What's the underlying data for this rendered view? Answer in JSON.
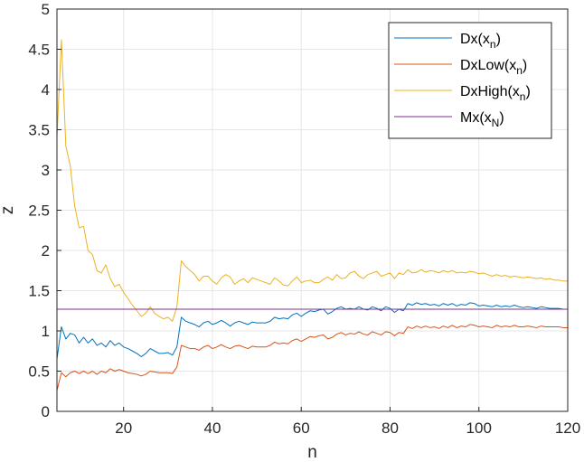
{
  "chart_data": {
    "type": "line",
    "xlabel": "n",
    "ylabel": "z",
    "xlim": [
      5,
      120
    ],
    "ylim": [
      0,
      5
    ],
    "x_ticks": [
      "20",
      "40",
      "60",
      "80",
      "100",
      "120"
    ],
    "y_ticks": [
      "0",
      "0.5",
      "1",
      "1.5",
      "2",
      "2.5",
      "3",
      "3.5",
      "4",
      "4.5",
      "5"
    ],
    "grid": true,
    "legend_position": "top-right",
    "series": [
      {
        "name": "Dx(x_n)",
        "legend_main": "Dx(x",
        "legend_sub": "n",
        "legend_close": ")",
        "color": "#0072bd",
        "x": [
          5,
          6,
          7,
          8,
          9,
          10,
          11,
          12,
          13,
          14,
          15,
          16,
          17,
          18,
          19,
          20,
          21,
          22,
          23,
          24,
          25,
          26,
          27,
          28,
          29,
          30,
          31,
          32,
          33,
          34,
          35,
          36,
          37,
          38,
          39,
          40,
          41,
          42,
          43,
          44,
          45,
          46,
          47,
          48,
          49,
          50,
          51,
          52,
          53,
          54,
          55,
          56,
          57,
          58,
          59,
          60,
          61,
          62,
          63,
          64,
          65,
          66,
          67,
          68,
          69,
          70,
          71,
          72,
          73,
          74,
          75,
          76,
          77,
          78,
          79,
          80,
          81,
          82,
          83,
          84,
          85,
          86,
          87,
          88,
          89,
          90,
          91,
          92,
          93,
          94,
          95,
          96,
          97,
          98,
          99,
          100,
          101,
          102,
          103,
          104,
          105,
          106,
          107,
          108,
          109,
          110,
          111,
          112,
          113,
          114,
          115,
          116,
          117,
          118,
          119,
          120
        ],
        "values": [
          0.65,
          1.05,
          0.9,
          0.97,
          0.95,
          0.85,
          0.92,
          0.85,
          0.9,
          0.82,
          0.85,
          0.8,
          0.88,
          0.82,
          0.85,
          0.8,
          0.78,
          0.75,
          0.72,
          0.68,
          0.72,
          0.78,
          0.75,
          0.72,
          0.72,
          0.73,
          0.7,
          0.8,
          1.17,
          1.12,
          1.1,
          1.08,
          1.05,
          1.1,
          1.12,
          1.08,
          1.1,
          1.13,
          1.1,
          1.06,
          1.1,
          1.12,
          1.1,
          1.08,
          1.11,
          1.1,
          1.1,
          1.1,
          1.12,
          1.17,
          1.15,
          1.16,
          1.15,
          1.2,
          1.22,
          1.18,
          1.22,
          1.25,
          1.24,
          1.26,
          1.27,
          1.21,
          1.24,
          1.28,
          1.3,
          1.27,
          1.28,
          1.27,
          1.3,
          1.27,
          1.26,
          1.3,
          1.28,
          1.25,
          1.3,
          1.28,
          1.23,
          1.27,
          1.25,
          1.34,
          1.32,
          1.35,
          1.33,
          1.34,
          1.32,
          1.33,
          1.31,
          1.34,
          1.32,
          1.34,
          1.31,
          1.33,
          1.32,
          1.35,
          1.34,
          1.31,
          1.32,
          1.31,
          1.3,
          1.32,
          1.3,
          1.31,
          1.3,
          1.32,
          1.3,
          1.29,
          1.3,
          1.29,
          1.28,
          1.3,
          1.29,
          1.28,
          1.28,
          1.28,
          1.27,
          1.27
        ]
      },
      {
        "name": "DxLow(x_n)",
        "legend_main": "DxLow(x",
        "legend_sub": "n",
        "legend_close": ")",
        "color": "#d95319",
        "x": [
          5,
          6,
          7,
          8,
          9,
          10,
          11,
          12,
          13,
          14,
          15,
          16,
          17,
          18,
          19,
          20,
          21,
          22,
          23,
          24,
          25,
          26,
          27,
          28,
          29,
          30,
          31,
          32,
          33,
          34,
          35,
          36,
          37,
          38,
          39,
          40,
          41,
          42,
          43,
          44,
          45,
          46,
          47,
          48,
          49,
          50,
          51,
          52,
          53,
          54,
          55,
          56,
          57,
          58,
          59,
          60,
          61,
          62,
          63,
          64,
          65,
          66,
          67,
          68,
          69,
          70,
          71,
          72,
          73,
          74,
          75,
          76,
          77,
          78,
          79,
          80,
          81,
          82,
          83,
          84,
          85,
          86,
          87,
          88,
          89,
          90,
          91,
          92,
          93,
          94,
          95,
          96,
          97,
          98,
          99,
          100,
          101,
          102,
          103,
          104,
          105,
          106,
          107,
          108,
          109,
          110,
          111,
          112,
          113,
          114,
          115,
          116,
          117,
          118,
          119,
          120
        ],
        "values": [
          0.26,
          0.48,
          0.43,
          0.48,
          0.5,
          0.47,
          0.5,
          0.47,
          0.5,
          0.46,
          0.5,
          0.48,
          0.53,
          0.5,
          0.52,
          0.5,
          0.48,
          0.47,
          0.46,
          0.44,
          0.46,
          0.5,
          0.49,
          0.48,
          0.48,
          0.48,
          0.47,
          0.55,
          0.82,
          0.8,
          0.78,
          0.78,
          0.76,
          0.8,
          0.82,
          0.78,
          0.8,
          0.83,
          0.8,
          0.78,
          0.81,
          0.82,
          0.8,
          0.78,
          0.81,
          0.8,
          0.8,
          0.8,
          0.82,
          0.86,
          0.84,
          0.85,
          0.84,
          0.88,
          0.9,
          0.87,
          0.9,
          0.93,
          0.92,
          0.94,
          0.95,
          0.9,
          0.92,
          0.96,
          0.98,
          0.95,
          0.97,
          0.96,
          0.99,
          0.96,
          0.95,
          0.99,
          0.97,
          0.95,
          0.99,
          0.98,
          0.94,
          0.98,
          0.97,
          1.05,
          1.03,
          1.06,
          1.04,
          1.06,
          1.04,
          1.05,
          1.03,
          1.06,
          1.04,
          1.07,
          1.04,
          1.06,
          1.05,
          1.08,
          1.07,
          1.05,
          1.06,
          1.05,
          1.04,
          1.07,
          1.05,
          1.06,
          1.05,
          1.07,
          1.05,
          1.05,
          1.06,
          1.05,
          1.04,
          1.06,
          1.05,
          1.05,
          1.05,
          1.05,
          1.04,
          1.04
        ]
      },
      {
        "name": "DxHigh(x_n)",
        "legend_main": "DxHigh(x",
        "legend_sub": "n",
        "legend_close": ")",
        "color": "#edb120",
        "x": [
          5,
          6,
          7,
          8,
          9,
          10,
          11,
          12,
          13,
          14,
          15,
          16,
          17,
          18,
          19,
          20,
          21,
          22,
          23,
          24,
          25,
          26,
          27,
          28,
          29,
          30,
          31,
          32,
          33,
          34,
          35,
          36,
          37,
          38,
          39,
          40,
          41,
          42,
          43,
          44,
          45,
          46,
          47,
          48,
          49,
          50,
          51,
          52,
          53,
          54,
          55,
          56,
          57,
          58,
          59,
          60,
          61,
          62,
          63,
          64,
          65,
          66,
          67,
          68,
          69,
          70,
          71,
          72,
          73,
          74,
          75,
          76,
          77,
          78,
          79,
          80,
          81,
          82,
          83,
          84,
          85,
          86,
          87,
          88,
          89,
          90,
          91,
          92,
          93,
          94,
          95,
          96,
          97,
          98,
          99,
          100,
          101,
          102,
          103,
          104,
          105,
          106,
          107,
          108,
          109,
          110,
          111,
          112,
          113,
          114,
          115,
          116,
          117,
          118,
          119,
          120
        ],
        "values": [
          3.4,
          4.62,
          3.3,
          3.05,
          2.55,
          2.28,
          2.3,
          2.0,
          1.95,
          1.75,
          1.72,
          1.82,
          1.65,
          1.55,
          1.58,
          1.48,
          1.4,
          1.32,
          1.25,
          1.18,
          1.22,
          1.3,
          1.22,
          1.18,
          1.15,
          1.17,
          1.12,
          1.3,
          1.87,
          1.8,
          1.75,
          1.7,
          1.62,
          1.68,
          1.68,
          1.62,
          1.58,
          1.66,
          1.7,
          1.67,
          1.58,
          1.62,
          1.65,
          1.6,
          1.66,
          1.64,
          1.62,
          1.6,
          1.58,
          1.66,
          1.62,
          1.57,
          1.56,
          1.62,
          1.67,
          1.6,
          1.62,
          1.63,
          1.6,
          1.6,
          1.64,
          1.67,
          1.63,
          1.7,
          1.65,
          1.66,
          1.72,
          1.74,
          1.68,
          1.65,
          1.7,
          1.72,
          1.74,
          1.68,
          1.7,
          1.72,
          1.65,
          1.72,
          1.7,
          1.76,
          1.72,
          1.73,
          1.76,
          1.73,
          1.75,
          1.74,
          1.72,
          1.75,
          1.73,
          1.75,
          1.72,
          1.73,
          1.72,
          1.74,
          1.73,
          1.71,
          1.72,
          1.7,
          1.68,
          1.7,
          1.68,
          1.69,
          1.67,
          1.68,
          1.67,
          1.66,
          1.67,
          1.66,
          1.65,
          1.66,
          1.64,
          1.65,
          1.63,
          1.63,
          1.62,
          1.62
        ]
      },
      {
        "name": "Mx(x_N)",
        "legend_main": "Mx(x",
        "legend_sub": "N",
        "legend_close": ")",
        "color": "#7e2f8e",
        "x": [
          5,
          120
        ],
        "values": [
          1.27,
          1.27
        ]
      }
    ]
  }
}
